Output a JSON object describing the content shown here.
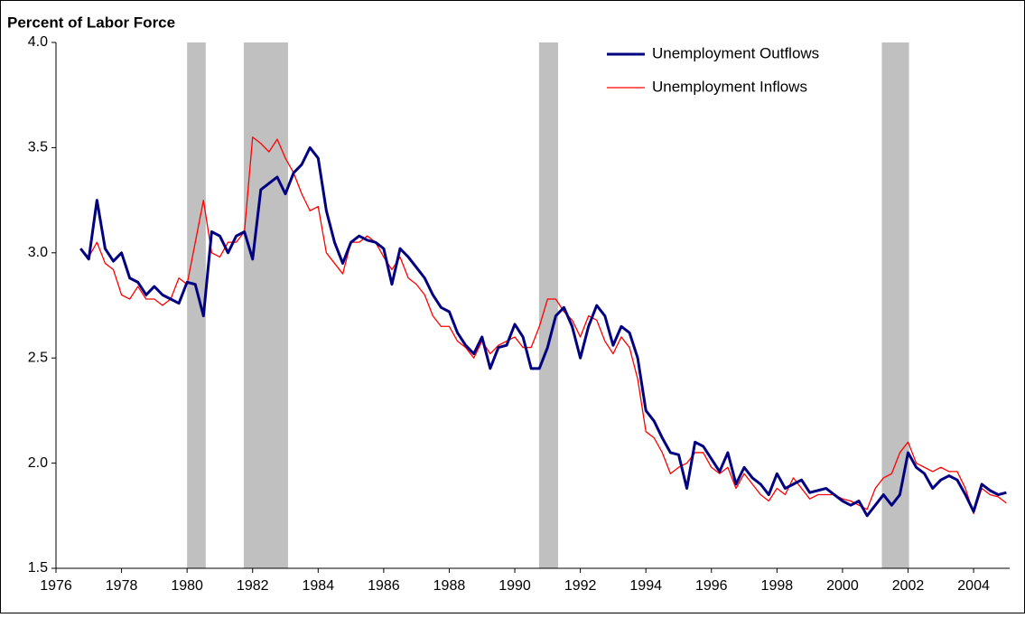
{
  "chart_data": {
    "type": "line",
    "y_axis_label": "Percent of Labor Force",
    "x": [
      1976.75,
      1977,
      1977.25,
      1977.5,
      1977.75,
      1978,
      1978.25,
      1978.5,
      1978.75,
      1979,
      1979.25,
      1979.5,
      1979.75,
      1980,
      1980.25,
      1980.5,
      1980.75,
      1981,
      1981.25,
      1981.5,
      1981.75,
      1982,
      1982.25,
      1982.5,
      1982.75,
      1983,
      1983.25,
      1983.5,
      1983.75,
      1984,
      1984.25,
      1984.5,
      1984.75,
      1985,
      1985.25,
      1985.5,
      1985.75,
      1986,
      1986.25,
      1986.5,
      1986.75,
      1987,
      1987.25,
      1987.5,
      1987.75,
      1988,
      1988.25,
      1988.5,
      1988.75,
      1989,
      1989.25,
      1989.5,
      1989.75,
      1990,
      1990.25,
      1990.5,
      1990.75,
      1991,
      1991.25,
      1991.5,
      1991.75,
      1992,
      1992.25,
      1992.5,
      1992.75,
      1993,
      1993.25,
      1993.5,
      1993.75,
      1994,
      1994.25,
      1994.5,
      1994.75,
      1995,
      1995.25,
      1995.5,
      1995.75,
      1996,
      1996.25,
      1996.5,
      1996.75,
      1997,
      1997.25,
      1997.5,
      1997.75,
      1998,
      1998.25,
      1998.5,
      1998.75,
      1999,
      1999.25,
      1999.5,
      1999.75,
      2000,
      2000.25,
      2000.5,
      2000.75,
      2001,
      2001.25,
      2001.5,
      2001.75,
      2002,
      2002.25,
      2002.5,
      2002.75,
      2003,
      2003.25,
      2003.5,
      2003.75,
      2004,
      2004.25,
      2004.5,
      2004.75,
      2005
    ],
    "series": [
      {
        "name": "Unemployment Outflows",
        "color": "#000080",
        "width": 3,
        "values": [
          3.02,
          2.97,
          3.25,
          3.02,
          2.96,
          3.0,
          2.88,
          2.86,
          2.8,
          2.84,
          2.8,
          2.78,
          2.76,
          2.86,
          2.85,
          2.7,
          3.1,
          3.08,
          3.0,
          3.08,
          3.1,
          2.97,
          3.3,
          3.33,
          3.36,
          3.28,
          3.38,
          3.42,
          3.5,
          3.45,
          3.2,
          3.05,
          2.95,
          3.05,
          3.08,
          3.06,
          3.05,
          3.02,
          2.85,
          3.02,
          2.98,
          2.93,
          2.88,
          2.8,
          2.74,
          2.72,
          2.62,
          2.56,
          2.52,
          2.6,
          2.45,
          2.55,
          2.56,
          2.66,
          2.6,
          2.45,
          2.45,
          2.55,
          2.7,
          2.74,
          2.65,
          2.5,
          2.65,
          2.75,
          2.7,
          2.56,
          2.65,
          2.62,
          2.5,
          2.25,
          2.2,
          2.12,
          2.05,
          2.04,
          1.88,
          2.1,
          2.08,
          2.02,
          1.96,
          2.05,
          1.9,
          1.98,
          1.93,
          1.9,
          1.85,
          1.95,
          1.88,
          1.9,
          1.92,
          1.86,
          1.87,
          1.88,
          1.85,
          1.82,
          1.8,
          1.82,
          1.75,
          1.8,
          1.85,
          1.8,
          1.85,
          2.05,
          1.98,
          1.95,
          1.88,
          1.92,
          1.94,
          1.92,
          1.85,
          1.77,
          1.9,
          1.87,
          1.85,
          1.86
        ]
      },
      {
        "name": "Unemployment Inflows",
        "color": "#ff0000",
        "width": 1.3,
        "values": [
          3.02,
          2.98,
          3.05,
          2.95,
          2.92,
          2.8,
          2.78,
          2.84,
          2.78,
          2.78,
          2.75,
          2.78,
          2.88,
          2.85,
          3.05,
          3.25,
          3.0,
          2.98,
          3.05,
          3.05,
          3.1,
          3.55,
          3.52,
          3.48,
          3.54,
          3.45,
          3.38,
          3.28,
          3.2,
          3.22,
          3.0,
          2.95,
          2.9,
          3.05,
          3.05,
          3.08,
          3.05,
          2.98,
          2.92,
          2.98,
          2.88,
          2.85,
          2.8,
          2.7,
          2.65,
          2.65,
          2.58,
          2.55,
          2.5,
          2.58,
          2.52,
          2.56,
          2.58,
          2.6,
          2.55,
          2.55,
          2.65,
          2.78,
          2.78,
          2.72,
          2.68,
          2.6,
          2.7,
          2.68,
          2.58,
          2.52,
          2.6,
          2.55,
          2.4,
          2.15,
          2.12,
          2.05,
          1.95,
          1.98,
          2.0,
          2.05,
          2.05,
          1.98,
          1.95,
          1.98,
          1.88,
          1.95,
          1.9,
          1.85,
          1.82,
          1.88,
          1.85,
          1.93,
          1.88,
          1.83,
          1.85,
          1.85,
          1.85,
          1.83,
          1.82,
          1.8,
          1.78,
          1.88,
          1.93,
          1.95,
          2.05,
          2.1,
          2.0,
          1.98,
          1.96,
          1.98,
          1.96,
          1.96,
          1.88,
          1.76,
          1.88,
          1.85,
          1.84,
          1.81
        ]
      }
    ],
    "shaded_periods": [
      {
        "start": 1980.0,
        "end": 1980.57
      },
      {
        "start": 1981.73,
        "end": 1983.08
      },
      {
        "start": 1990.74,
        "end": 1991.32
      },
      {
        "start": 2001.2,
        "end": 2002.03
      }
    ],
    "shade_color": "#c0c0c0",
    "xlim": [
      1976,
      2005.1
    ],
    "xticks": [
      1976,
      1978,
      1980,
      1982,
      1984,
      1986,
      1988,
      1990,
      1992,
      1994,
      1996,
      1998,
      2000,
      2002,
      2004
    ],
    "ylim": [
      1.5,
      4.0
    ],
    "yticks": [
      1.5,
      {
        "value": 2,
        "label": "2.0"
      },
      2.5,
      {
        "value": 3,
        "label": "3.0"
      },
      3.5,
      {
        "value": 4,
        "label": "4.0"
      }
    ],
    "legend": "upper right",
    "grid": false
  }
}
